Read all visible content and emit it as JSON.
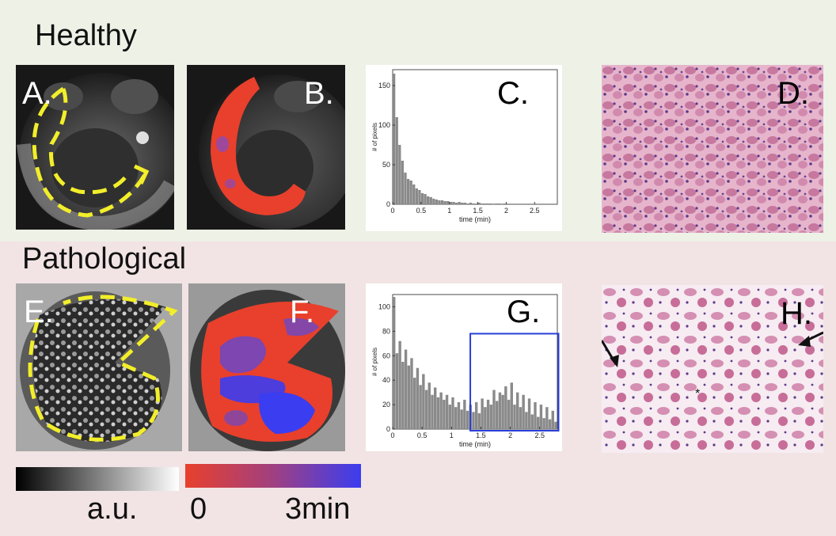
{
  "sections": {
    "healthy": "Healthy",
    "pathological": "Pathological"
  },
  "panels": {
    "a": "A.",
    "b": "B.",
    "c": "C.",
    "d": "D.",
    "e": "E.",
    "f": "F.",
    "g": "G.",
    "h": "H."
  },
  "colorbars": {
    "gray_label": "a.u.",
    "color_min": "0",
    "color_max": "3min"
  },
  "colors": {
    "map_low": "#e8402c",
    "map_high": "#3b3df0",
    "outline": "#f2ee2a",
    "histogram_bar": "#8a8a8a",
    "highlight_box": "#2a3fd8",
    "histology": "#d58fb2"
  },
  "chart_data": [
    {
      "type": "bar",
      "panel": "C.",
      "xlabel": "time (min)",
      "ylabel": "# of pixels",
      "xlim": [
        0,
        2.9
      ],
      "ylim": [
        0,
        170
      ],
      "xticks": [
        "0",
        "0.5",
        "1",
        "1.5",
        "2",
        "2.5"
      ],
      "xtick_values": [
        0,
        0.5,
        1,
        1.5,
        2,
        2.5
      ],
      "yticks": [
        "0",
        "50",
        "100",
        "150"
      ],
      "ytick_values": [
        0,
        50,
        100,
        150
      ],
      "bin_width": 0.05,
      "x": [
        0.025,
        0.075,
        0.125,
        0.175,
        0.225,
        0.275,
        0.325,
        0.375,
        0.425,
        0.475,
        0.525,
        0.575,
        0.625,
        0.675,
        0.725,
        0.775,
        0.825,
        0.875,
        0.925,
        0.975,
        1.025,
        1.075,
        1.125,
        1.175,
        1.225,
        1.275,
        1.325,
        1.375,
        1.425,
        1.475,
        1.525,
        1.575,
        1.625,
        1.675,
        1.725,
        1.775,
        1.825,
        1.875,
        1.925,
        1.975
      ],
      "values": [
        165,
        110,
        75,
        55,
        40,
        32,
        30,
        25,
        20,
        18,
        14,
        13,
        10,
        9,
        7,
        6,
        5,
        5,
        4,
        4,
        3,
        3,
        2,
        3,
        2,
        2,
        1,
        2,
        1,
        1,
        2,
        1,
        1,
        1,
        1,
        0,
        1,
        1,
        0,
        1
      ]
    },
    {
      "type": "bar",
      "panel": "G.",
      "xlabel": "time (min)",
      "ylabel": "# of pixels",
      "xlim": [
        0,
        2.8
      ],
      "ylim": [
        0,
        110
      ],
      "xticks": [
        "0",
        "0.5",
        "1",
        "1.5",
        "2",
        "2.5"
      ],
      "xtick_values": [
        0,
        0.5,
        1,
        1.5,
        2,
        2.5
      ],
      "yticks": [
        "0",
        "20",
        "40",
        "60",
        "80",
        "100"
      ],
      "ytick_values": [
        0,
        20,
        40,
        60,
        80,
        100
      ],
      "bin_width": 0.05,
      "highlight_range": [
        1.32,
        2.82
      ],
      "x": [
        0.025,
        0.075,
        0.125,
        0.175,
        0.225,
        0.275,
        0.325,
        0.375,
        0.425,
        0.475,
        0.525,
        0.575,
        0.625,
        0.675,
        0.725,
        0.775,
        0.825,
        0.875,
        0.925,
        0.975,
        1.025,
        1.075,
        1.125,
        1.175,
        1.225,
        1.275,
        1.325,
        1.375,
        1.425,
        1.475,
        1.525,
        1.575,
        1.625,
        1.675,
        1.725,
        1.775,
        1.825,
        1.875,
        1.925,
        1.975,
        2.025,
        2.075,
        2.125,
        2.175,
        2.225,
        2.275,
        2.325,
        2.375,
        2.425,
        2.475,
        2.525,
        2.575,
        2.625,
        2.675,
        2.725,
        2.775
      ],
      "values": [
        108,
        62,
        72,
        55,
        65,
        52,
        58,
        42,
        50,
        36,
        45,
        32,
        38,
        28,
        34,
        26,
        30,
        24,
        28,
        20,
        26,
        18,
        22,
        16,
        24,
        15,
        20,
        14,
        22,
        13,
        25,
        18,
        24,
        20,
        32,
        23,
        30,
        28,
        35,
        24,
        38,
        20,
        30,
        18,
        28,
        14,
        25,
        12,
        22,
        10,
        20,
        9,
        18,
        8,
        15,
        6
      ]
    }
  ]
}
